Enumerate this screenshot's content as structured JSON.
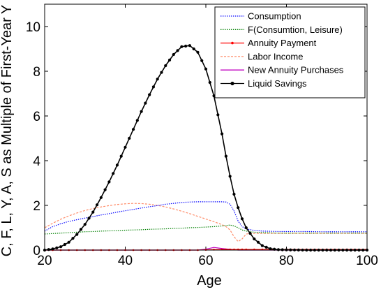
{
  "chart_data": {
    "type": "line",
    "title": "",
    "xlabel": "Age",
    "ylabel": "C, F, L, Y, A, S as Multiple of First-Year Y",
    "xlim": [
      20,
      100
    ],
    "ylim": [
      0,
      11
    ],
    "xticks": [
      20,
      40,
      60,
      80,
      100
    ],
    "yticks": [
      0,
      2,
      4,
      6,
      8,
      10
    ],
    "grid": false,
    "legend_position": "top-right",
    "x": [
      20,
      22,
      24,
      26,
      28,
      30,
      32,
      34,
      36,
      38,
      40,
      42,
      44,
      46,
      48,
      50,
      52,
      54,
      56,
      58,
      60,
      62,
      64,
      65,
      66,
      67,
      68,
      69,
      70,
      72,
      74,
      76,
      78,
      80,
      85,
      90,
      95,
      100
    ],
    "series": [
      {
        "name": "Consumption",
        "color": "#0000ff",
        "style": "dotted",
        "marker": "none",
        "values": [
          0.85,
          1.05,
          1.18,
          1.28,
          1.36,
          1.43,
          1.5,
          1.57,
          1.63,
          1.7,
          1.76,
          1.82,
          1.88,
          1.94,
          1.99,
          2.05,
          2.09,
          2.13,
          2.15,
          2.16,
          2.16,
          2.16,
          2.16,
          2.15,
          2.05,
          1.75,
          1.3,
          1.05,
          0.95,
          0.88,
          0.85,
          0.84,
          0.83,
          0.83,
          0.83,
          0.82,
          0.82,
          0.82
        ]
      },
      {
        "name": "F(Consumtion, Leisure)",
        "color": "#008000",
        "style": "dotted",
        "marker": "none",
        "values": [
          0.72,
          0.74,
          0.76,
          0.78,
          0.8,
          0.82,
          0.83,
          0.85,
          0.86,
          0.87,
          0.89,
          0.9,
          0.91,
          0.93,
          0.94,
          0.95,
          0.97,
          0.98,
          1.0,
          1.01,
          1.03,
          1.05,
          1.08,
          1.1,
          1.12,
          1.08,
          1.0,
          0.9,
          0.85,
          0.8,
          0.78,
          0.77,
          0.76,
          0.76,
          0.76,
          0.76,
          0.76,
          0.76
        ]
      },
      {
        "name": "Annuity Payment",
        "color": "#ff0000",
        "style": "solid",
        "marker": "dot",
        "values": [
          0,
          0,
          0,
          0,
          0,
          0,
          0,
          0,
          0,
          0,
          0,
          0,
          0,
          0,
          0,
          0,
          0,
          0,
          0,
          0,
          0.01,
          0.02,
          0.03,
          0.03,
          0.03,
          0.03,
          0.03,
          0.03,
          0.03,
          0.03,
          0.03,
          0.03,
          0.03,
          0.03,
          0.03,
          0.03,
          0.03,
          0.03
        ]
      },
      {
        "name": "Labor Income",
        "color": "#ff8c69",
        "style": "dashed",
        "marker": "none",
        "values": [
          1.0,
          1.2,
          1.38,
          1.53,
          1.66,
          1.77,
          1.86,
          1.93,
          1.99,
          2.04,
          2.07,
          2.09,
          2.08,
          2.05,
          2.0,
          1.93,
          1.84,
          1.74,
          1.63,
          1.51,
          1.39,
          1.27,
          1.14,
          1.05,
          0.9,
          0.6,
          0.38,
          0.5,
          0.72,
          0.75,
          0.75,
          0.75,
          0.75,
          0.75,
          0.75,
          0.75,
          0.75,
          0.75
        ]
      },
      {
        "name": "New Annuity Purchases",
        "color": "#c000c0",
        "style": "solid",
        "marker": "none",
        "values": [
          0,
          0,
          0,
          0,
          0,
          0,
          0,
          0,
          0,
          0,
          0,
          0,
          0,
          0,
          0,
          0,
          0,
          0,
          0,
          0,
          0.04,
          0.12,
          0.07,
          0.05,
          0.04,
          0.02,
          0,
          0,
          0,
          0,
          0,
          0,
          0,
          0,
          0,
          0,
          0,
          0
        ]
      },
      {
        "name": "Liquid Savings",
        "color": "#000000",
        "style": "solid",
        "marker": "dot",
        "values": [
          0,
          0.05,
          0.15,
          0.35,
          0.7,
          1.15,
          1.7,
          2.35,
          3.05,
          3.8,
          4.6,
          5.4,
          6.2,
          6.95,
          7.65,
          8.25,
          8.75,
          9.1,
          9.15,
          8.85,
          8.1,
          6.9,
          5.2,
          4.2,
          3.3,
          2.5,
          1.9,
          1.4,
          1.0,
          0.5,
          0.2,
          0.06,
          0.02,
          0.01,
          0,
          0,
          0,
          0
        ]
      }
    ]
  }
}
